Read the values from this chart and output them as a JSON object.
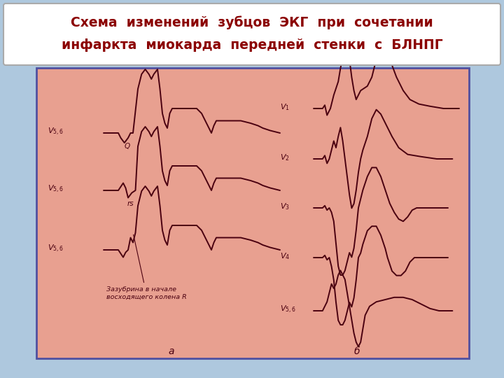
{
  "title_line1": "Схема  изменений  зубцов  ЭКГ  при  сочетании",
  "title_line2": "инфаркта  миокарда  передней  стенки  с  БЛНПГ",
  "title_color": "#8B0000",
  "title_bg": "#ffffff",
  "bg_outer": "#aec8de",
  "bg_inner": "#e8a090",
  "border_color": "#5050a0",
  "ecg_color": "#4a0010",
  "label_color": "#4a0010",
  "label_a": "а",
  "label_b": "б",
  "annotation": "Зазубрина в начале\nвосходящего колена R"
}
